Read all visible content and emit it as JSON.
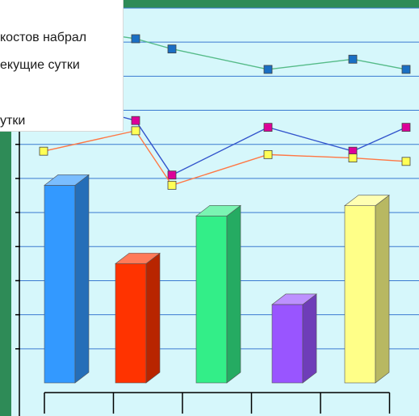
{
  "chart_data": {
    "type": "bar",
    "title": "",
    "xlabel": "",
    "ylabel": "",
    "categories": [
      "",
      "",
      "",
      "",
      ""
    ],
    "ylim": [
      0,
      11
    ],
    "grid": true,
    "legend": {
      "placement": "top-left",
      "entries": [
        "костов набрал",
        "екущие сутки",
        "утки"
      ]
    },
    "bars": {
      "values": [
        5.8,
        3.5,
        4.9,
        2.3,
        5.2
      ],
      "colors": [
        "#3399ff",
        "#ff3300",
        "#33ee88",
        "#9955ff",
        "#ffff88"
      ]
    },
    "line_series": [
      {
        "color": "#55bb88",
        "marker_color": "#1a6fc4",
        "values": [
          10.5,
          10.1,
          9.8,
          9.2,
          9.5,
          9.2
        ]
      },
      {
        "color": "#3355cc",
        "marker_color": "#dd0099",
        "values": [
          8.4,
          7.7,
          6.1,
          7.5,
          6.8,
          7.5
        ]
      },
      {
        "color": "#ff7744",
        "marker_color": "#ffff55",
        "values": [
          6.8,
          7.4,
          5.8,
          6.7,
          6.6,
          6.5
        ]
      }
    ]
  }
}
